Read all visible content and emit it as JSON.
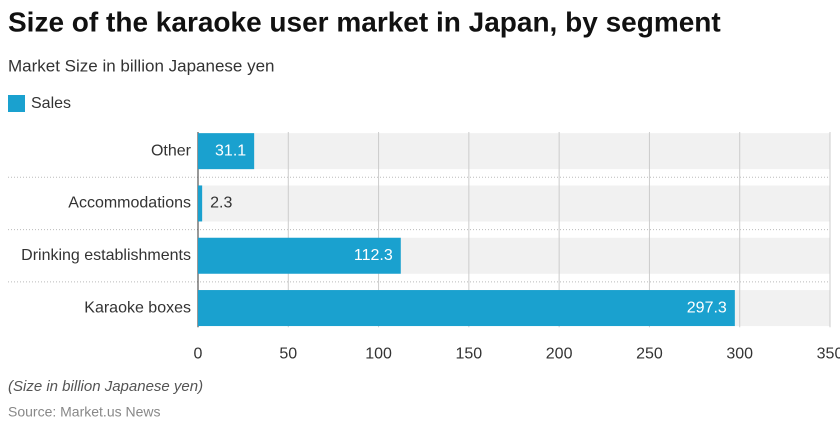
{
  "chart_data": {
    "type": "hbar",
    "title": "Size of the karaoke user market in Japan, by segment",
    "subtitle": "Market Size in billion Japanese yen",
    "categories": [
      "Other",
      "Accommodations",
      "Drinking establishments",
      "Karaoke boxes"
    ],
    "series": [
      {
        "name": "Sales",
        "color": "#1aa1cf",
        "values": [
          31.1,
          2.3,
          112.3,
          297.3
        ]
      }
    ],
    "xlim": [
      0,
      350
    ],
    "xticks": [
      0,
      50,
      100,
      150,
      200,
      250,
      300,
      350
    ],
    "grid": true,
    "note": "(Size in billion Japanese yen)",
    "source": "Source: Market.us News"
  }
}
